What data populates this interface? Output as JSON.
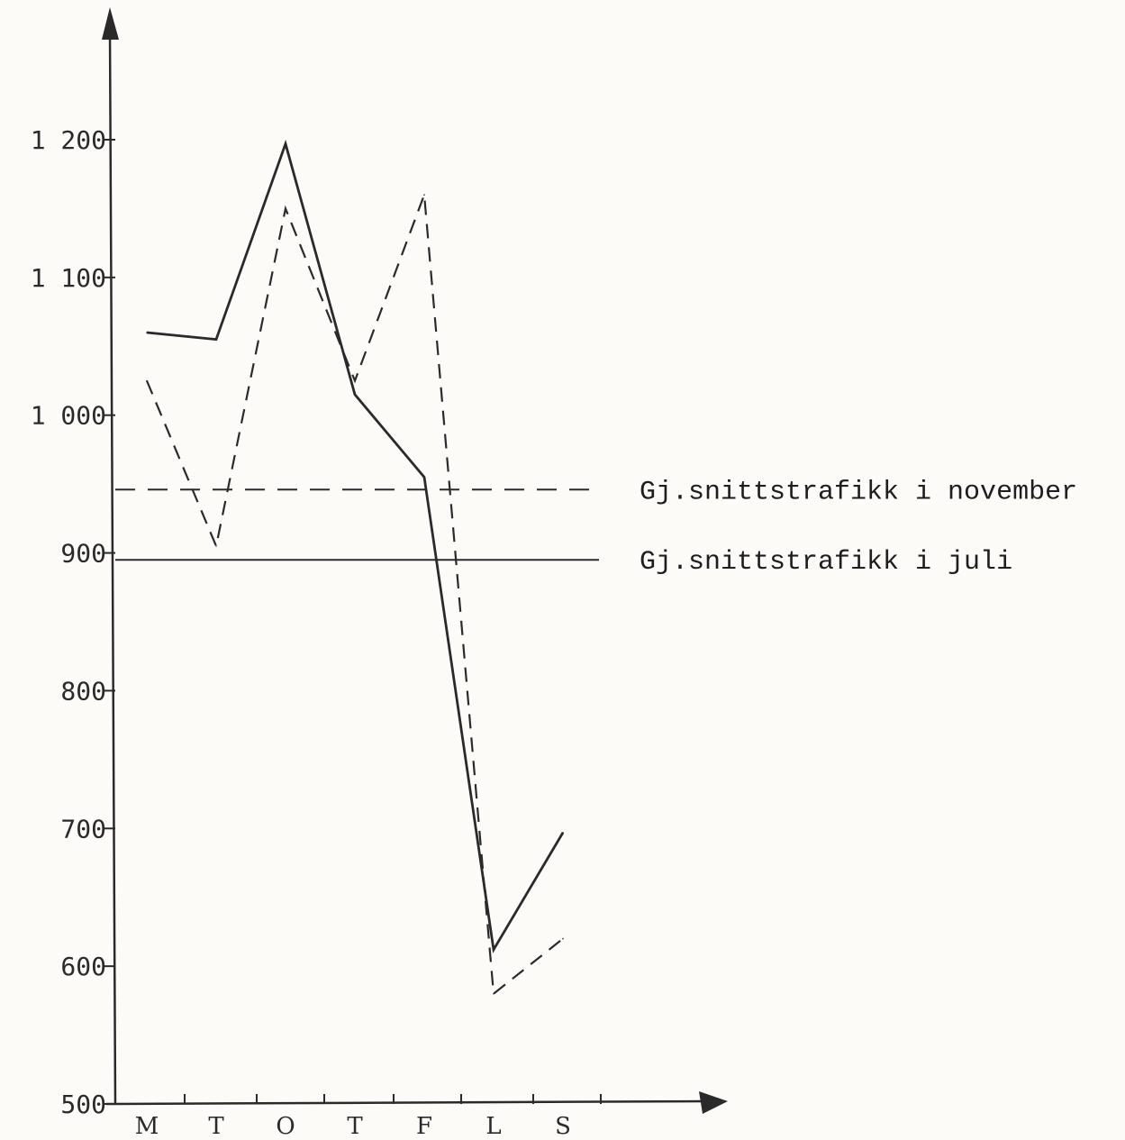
{
  "chart_data": {
    "type": "line",
    "title": "",
    "xlabel": "",
    "ylabel": "",
    "categories": [
      "M",
      "T",
      "O",
      "T",
      "F",
      "L",
      "S"
    ],
    "ylim": [
      500,
      1200
    ],
    "yticks": [
      {
        "value": 1200,
        "label": "1 200"
      },
      {
        "value": 1100,
        "label": "1 100"
      },
      {
        "value": 1000,
        "label": "1 000"
      },
      {
        "value": 900,
        "label": "900"
      },
      {
        "value": 800,
        "label": "800"
      },
      {
        "value": 700,
        "label": "700"
      },
      {
        "value": 600,
        "label": "600"
      },
      {
        "value": 500,
        "label": "500"
      }
    ],
    "series": [
      {
        "style": "solid",
        "values": [
          1060,
          1055,
          1197,
          1015,
          955,
          612,
          697
        ]
      },
      {
        "style": "dashed",
        "values": [
          1025,
          905,
          1150,
          1025,
          1160,
          580,
          620
        ]
      }
    ],
    "reference_lines": [
      {
        "label": "Gj.snittstrafikk i november",
        "value": 946,
        "style": "dashed"
      },
      {
        "label": "Gj.snittstrafikk i juli",
        "value": 895,
        "style": "solid"
      }
    ],
    "grid": false,
    "legend": "none",
    "colors": {
      "ink": "#2a2a2a",
      "paper": "#fcfbf7"
    }
  }
}
